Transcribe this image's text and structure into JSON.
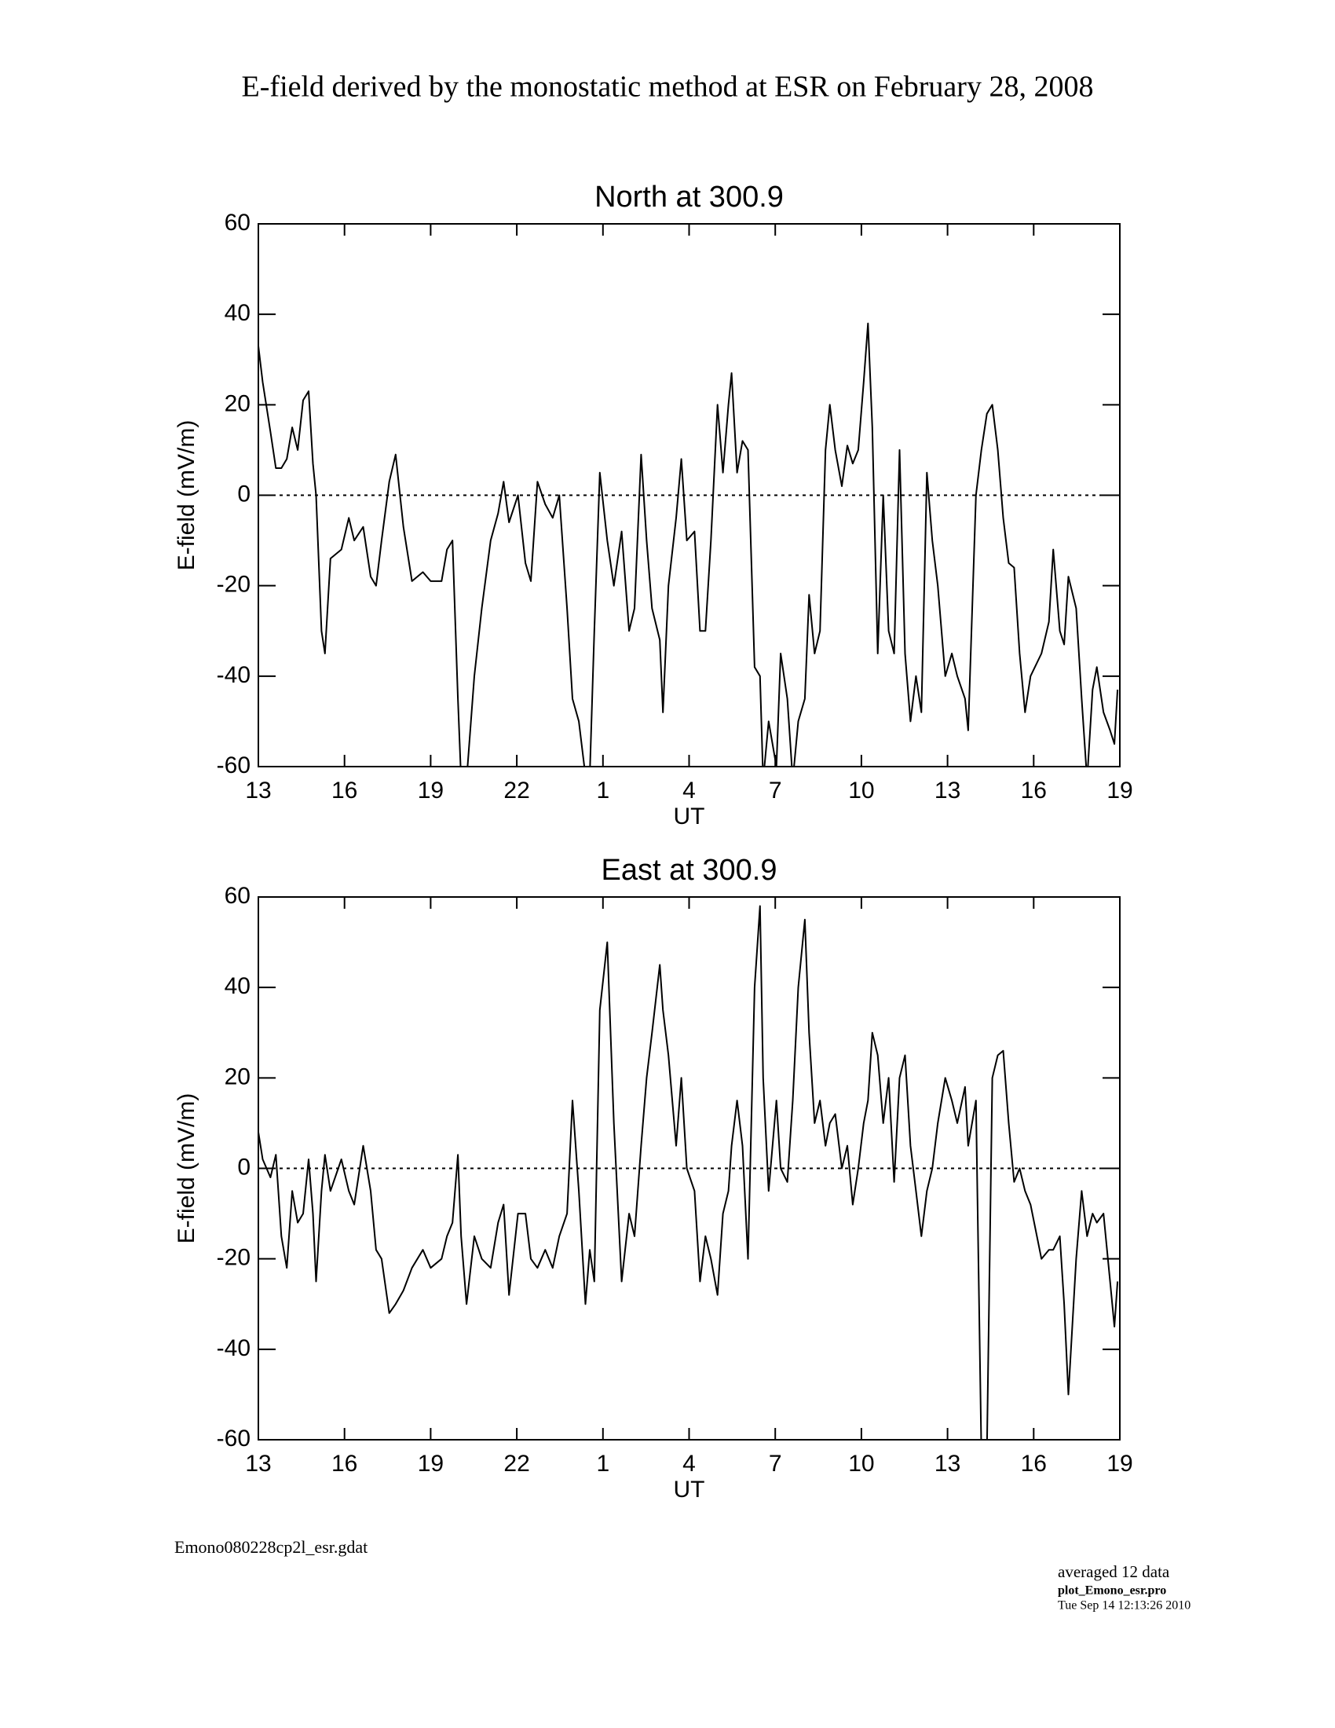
{
  "title": "E-field derived by the monostatic method at ESR on February 28, 2008",
  "chart_data": [
    {
      "type": "line",
      "title": "North at 300.9",
      "xlabel": "UT",
      "ylabel": "E-field (mV/m)",
      "color": "#000000",
      "zero_line": true,
      "xlim": [
        13,
        43
      ],
      "ylim": [
        -60,
        60
      ],
      "xticks": [
        13,
        16,
        19,
        22,
        {
          "value": 25,
          "label": "1"
        },
        {
          "value": 28,
          "label": "4"
        },
        {
          "value": 31,
          "label": "7"
        },
        {
          "value": 34,
          "label": "10"
        },
        {
          "value": 37,
          "label": "13"
        },
        {
          "value": 40,
          "label": "16"
        },
        {
          "value": 43,
          "label": "19"
        }
      ],
      "yticks": [
        -60,
        -40,
        -20,
        0,
        20,
        40,
        60
      ],
      "x": [
        13.0,
        13.15,
        13.42,
        13.61,
        13.8,
        13.99,
        14.18,
        14.37,
        14.56,
        14.75,
        14.9,
        15.01,
        15.2,
        15.32,
        15.51,
        15.89,
        16.15,
        16.34,
        16.65,
        16.91,
        17.1,
        17.29,
        17.56,
        17.78,
        18.05,
        18.35,
        18.73,
        19.0,
        19.38,
        19.57,
        19.76,
        19.95,
        20.06,
        20.25,
        20.52,
        20.78,
        21.09,
        21.35,
        21.54,
        21.73,
        22.04,
        22.3,
        22.49,
        22.72,
        22.99,
        23.25,
        23.48,
        23.75,
        23.94,
        24.16,
        24.39,
        24.54,
        24.7,
        24.89,
        25.15,
        25.38,
        25.65,
        25.91,
        26.1,
        26.33,
        26.52,
        26.71,
        26.98,
        27.09,
        27.28,
        27.55,
        27.73,
        27.92,
        28.19,
        28.38,
        28.57,
        28.76,
        28.99,
        29.18,
        29.37,
        29.48,
        29.67,
        29.86,
        30.05,
        30.28,
        30.47,
        30.58,
        30.77,
        31.04,
        31.19,
        31.42,
        31.61,
        31.8,
        32.03,
        32.18,
        32.37,
        32.56,
        32.75,
        32.9,
        33.09,
        33.32,
        33.51,
        33.7,
        33.89,
        34.08,
        34.23,
        34.38,
        34.57,
        34.76,
        34.95,
        35.14,
        35.33,
        35.52,
        35.71,
        35.9,
        36.09,
        36.28,
        36.47,
        36.66,
        36.92,
        37.15,
        37.34,
        37.61,
        37.72,
        37.99,
        38.18,
        38.37,
        38.56,
        38.75,
        38.94,
        39.13,
        39.32,
        39.51,
        39.7,
        39.89,
        40.27,
        40.53,
        40.68,
        40.91,
        41.06,
        41.21,
        41.48,
        41.67,
        41.86,
        42.05,
        42.2,
        42.43,
        42.66,
        42.81,
        42.92
      ],
      "values": [
        33,
        25,
        14,
        6,
        6,
        8,
        15,
        10,
        21,
        23,
        7,
        0,
        -30,
        -35,
        -14,
        -12,
        -5,
        -10,
        -7,
        -18,
        -20,
        -10,
        3,
        9,
        -7,
        -19,
        -17,
        -19,
        -19,
        -12,
        -10,
        -45,
        -63,
        -63,
        -40,
        -25,
        -10,
        -4,
        3,
        -6,
        0,
        -15,
        -19,
        3,
        -2,
        -5,
        0,
        -25,
        -45,
        -50,
        -62,
        -62,
        -30,
        5,
        -10,
        -20,
        -8,
        -30,
        -25,
        9,
        -10,
        -25,
        -32,
        -48,
        -20,
        -5,
        8,
        -10,
        -8,
        -30,
        -30,
        -10,
        20,
        5,
        20,
        27,
        5,
        12,
        10,
        -38,
        -40,
        -63,
        -50,
        -60,
        -35,
        -45,
        -63,
        -50,
        -45,
        -22,
        -35,
        -30,
        10,
        20,
        10,
        2,
        11,
        7,
        10,
        25,
        38,
        15,
        -35,
        0,
        -30,
        -35,
        10,
        -35,
        -50,
        -40,
        -48,
        5,
        -10,
        -20,
        -40,
        -35,
        -40,
        -45,
        -52,
        0,
        10,
        18,
        20,
        10,
        -5,
        -15,
        -16,
        -35,
        -48,
        -40,
        -35,
        -28,
        -12,
        -30,
        -33,
        -18,
        -25,
        -45,
        -63,
        -43,
        -38,
        -48,
        -52,
        -55,
        -43
      ]
    },
    {
      "type": "line",
      "title": "East at 300.9",
      "xlabel": "UT",
      "ylabel": "E-field (mV/m)",
      "color": "#000000",
      "zero_line": true,
      "xlim": [
        13,
        43
      ],
      "ylim": [
        -60,
        60
      ],
      "xticks": [
        13,
        16,
        19,
        22,
        {
          "value": 25,
          "label": "1"
        },
        {
          "value": 28,
          "label": "4"
        },
        {
          "value": 31,
          "label": "7"
        },
        {
          "value": 34,
          "label": "10"
        },
        {
          "value": 37,
          "label": "13"
        },
        {
          "value": 40,
          "label": "16"
        },
        {
          "value": 43,
          "label": "19"
        }
      ],
      "yticks": [
        -60,
        -40,
        -20,
        0,
        20,
        40,
        60
      ],
      "x": [
        13.0,
        13.15,
        13.42,
        13.61,
        13.8,
        13.99,
        14.18,
        14.37,
        14.56,
        14.75,
        14.9,
        15.01,
        15.2,
        15.32,
        15.51,
        15.89,
        16.15,
        16.34,
        16.65,
        16.91,
        17.1,
        17.29,
        17.56,
        17.78,
        18.05,
        18.35,
        18.73,
        19.0,
        19.38,
        19.57,
        19.76,
        19.95,
        20.06,
        20.25,
        20.52,
        20.78,
        21.09,
        21.35,
        21.54,
        21.73,
        22.04,
        22.3,
        22.49,
        22.72,
        22.99,
        23.25,
        23.48,
        23.75,
        23.94,
        24.16,
        24.39,
        24.54,
        24.7,
        24.89,
        25.15,
        25.38,
        25.65,
        25.91,
        26.1,
        26.33,
        26.52,
        26.71,
        26.98,
        27.09,
        27.28,
        27.55,
        27.73,
        27.92,
        28.19,
        28.38,
        28.57,
        28.76,
        28.99,
        29.18,
        29.37,
        29.48,
        29.67,
        29.86,
        30.05,
        30.28,
        30.47,
        30.58,
        30.77,
        31.04,
        31.19,
        31.42,
        31.61,
        31.8,
        32.03,
        32.18,
        32.37,
        32.56,
        32.75,
        32.9,
        33.09,
        33.32,
        33.51,
        33.7,
        33.89,
        34.08,
        34.23,
        34.38,
        34.57,
        34.76,
        34.95,
        35.14,
        35.33,
        35.52,
        35.71,
        35.9,
        36.09,
        36.28,
        36.47,
        36.66,
        36.92,
        37.15,
        37.34,
        37.61,
        37.72,
        37.99,
        38.18,
        38.37,
        38.56,
        38.75,
        38.94,
        39.13,
        39.32,
        39.51,
        39.7,
        39.89,
        40.27,
        40.53,
        40.68,
        40.91,
        41.06,
        41.21,
        41.48,
        41.67,
        41.86,
        42.05,
        42.2,
        42.43,
        42.66,
        42.81,
        42.92
      ],
      "values": [
        8,
        2,
        -2,
        3,
        -15,
        -22,
        -5,
        -12,
        -10,
        2,
        -10,
        -25,
        -5,
        3,
        -5,
        2,
        -5,
        -8,
        5,
        -5,
        -18,
        -20,
        -32,
        -30,
        -27,
        -22,
        -18,
        -22,
        -20,
        -15,
        -12,
        3,
        -15,
        -30,
        -15,
        -20,
        -22,
        -12,
        -8,
        -28,
        -10,
        -10,
        -20,
        -22,
        -18,
        -22,
        -15,
        -10,
        15,
        -5,
        -30,
        -18,
        -25,
        35,
        50,
        10,
        -25,
        -10,
        -15,
        5,
        20,
        30,
        45,
        35,
        25,
        5,
        20,
        0,
        -5,
        -25,
        -15,
        -20,
        -28,
        -10,
        -5,
        5,
        15,
        5,
        -20,
        40,
        58,
        20,
        -5,
        15,
        0,
        -3,
        15,
        40,
        55,
        30,
        10,
        15,
        5,
        10,
        12,
        0,
        5,
        -8,
        0,
        10,
        15,
        30,
        25,
        10,
        20,
        -3,
        20,
        25,
        5,
        -5,
        -15,
        -5,
        0,
        10,
        20,
        15,
        10,
        18,
        5,
        15,
        -63,
        -63,
        20,
        25,
        26,
        10,
        -3,
        0,
        -5,
        -8,
        -20,
        -18,
        -18,
        -15,
        -30,
        -50,
        -20,
        -5,
        -15,
        -10,
        -12,
        -10,
        -25,
        -35,
        -25
      ]
    }
  ],
  "footer": {
    "file": "Emono080228cp2l_esr.gdat",
    "note": "averaged 12 data",
    "program": "plot_Emono_esr.pro",
    "date": "Tue Sep 14 12:13:26 2010"
  }
}
